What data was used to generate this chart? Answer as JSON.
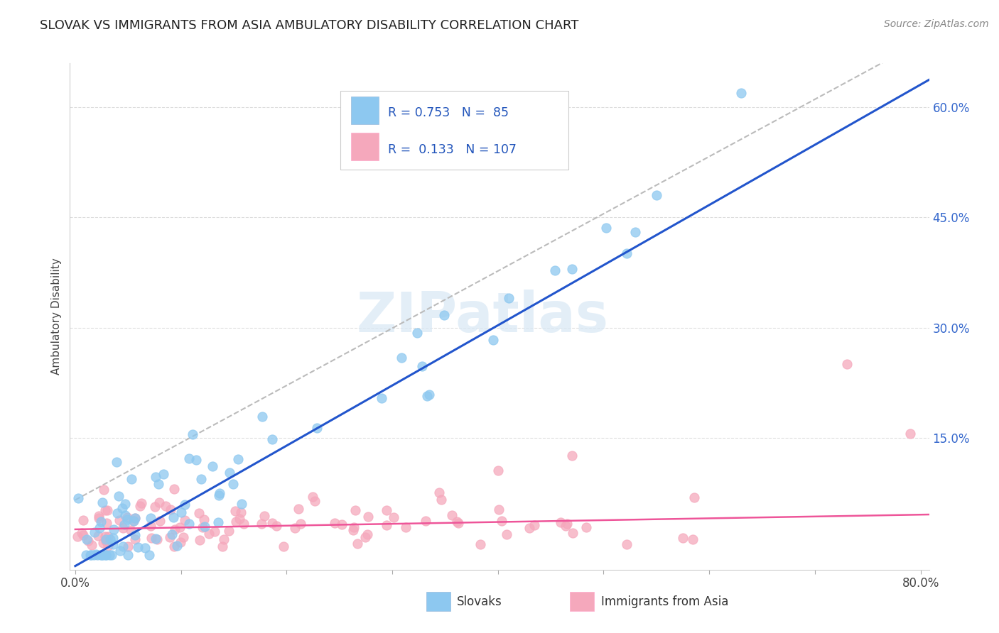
{
  "title": "SLOVAK VS IMMIGRANTS FROM ASIA AMBULATORY DISABILITY CORRELATION CHART",
  "source": "Source: ZipAtlas.com",
  "ylabel": "Ambulatory Disability",
  "xmin": 0.0,
  "xmax": 0.8,
  "ymin": -0.03,
  "ymax": 0.66,
  "yticks_right": [
    0.15,
    0.3,
    0.45,
    0.6
  ],
  "ytick_right_labels": [
    "15.0%",
    "30.0%",
    "45.0%",
    "60.0%"
  ],
  "color_slovak": "#8DC8F0",
  "color_asia": "#F5A8BC",
  "color_line_slovak": "#2255CC",
  "color_line_asia": "#EE5599",
  "color_line_dashed": "#BBBBBB",
  "watermark": "ZIPatlas",
  "background_color": "#FFFFFF"
}
